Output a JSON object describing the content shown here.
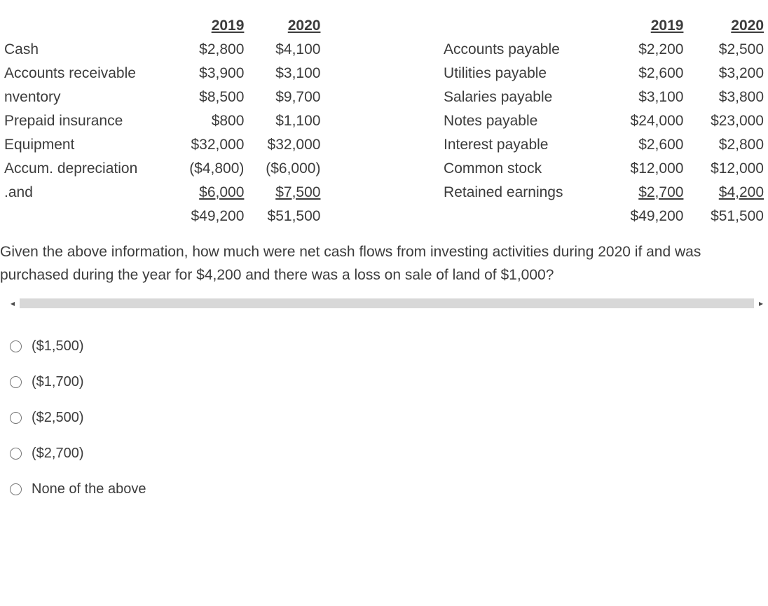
{
  "header": {
    "y2019": "2019",
    "y2020": "2020"
  },
  "left": [
    {
      "label": "Cash",
      "y2019": "$2,800",
      "y2020": "$4,100"
    },
    {
      "label": "Accounts receivable",
      "y2019": "$3,900",
      "y2020": "$3,100"
    },
    {
      "label": "nventory",
      "y2019": "$8,500",
      "y2020": "$9,700"
    },
    {
      "label": "Prepaid insurance",
      "y2019": "$800",
      "y2020": "$1,100"
    },
    {
      "label": "Equipment",
      "y2019": "$32,000",
      "y2020": "$32,000"
    },
    {
      "label": "Accum. depreciation",
      "y2019": "($4,800)",
      "y2020": "($6,000)"
    },
    {
      "label": ".and",
      "y2019": "$6,000",
      "y2020": "$7,500",
      "underline": true
    }
  ],
  "left_total": {
    "y2019": "$49,200",
    "y2020": "$51,500"
  },
  "right": [
    {
      "label": "Accounts payable",
      "y2019": "$2,200",
      "y2020": "$2,500"
    },
    {
      "label": "Utilities payable",
      "y2019": "$2,600",
      "y2020": "$3,200"
    },
    {
      "label": "Salaries payable",
      "y2019": "$3,100",
      "y2020": "$3,800"
    },
    {
      "label": "Notes payable",
      "y2019": "$24,000",
      "y2020": "$23,000"
    },
    {
      "label": "Interest payable",
      "y2019": "$2,600",
      "y2020": "$2,800"
    },
    {
      "label": "Common stock",
      "y2019": "$12,000",
      "y2020": "$12,000"
    },
    {
      "label": "Retained earnings",
      "y2019": "$2,700",
      "y2020": "$4,200",
      "underline": true
    }
  ],
  "right_total": {
    "y2019": "$49,200",
    "y2020": "$51,500"
  },
  "question": "Given the above information, how much were net cash flows from investing activities during 2020 if and was purchased during the year for $4,200 and there was a loss on sale of land of $1,000?",
  "options": [
    "($1,500)",
    "($1,700)",
    "($2,500)",
    "($2,700)",
    "None of the above"
  ],
  "scroll": {
    "left_glyph": "◂",
    "right_glyph": "▸"
  }
}
